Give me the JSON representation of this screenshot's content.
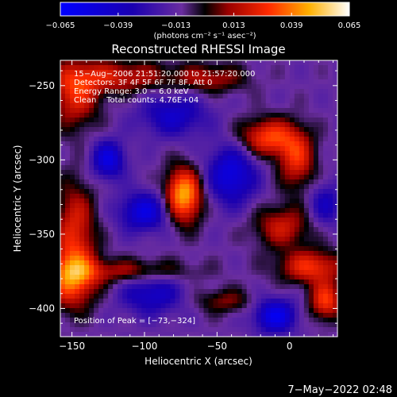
{
  "chart_data": {
    "type": "heatmap",
    "title": "Reconstructed RHESSI Image",
    "xlabel": "Heliocentric X (arcsec)",
    "ylabel": "Heliocentric Y (arcsec)",
    "xlim": [
      -158,
      33
    ],
    "ylim": [
      -419,
      -233
    ],
    "x_ticks": [
      -150,
      -100,
      -50,
      0
    ],
    "x_tick_labels": [
      "−150",
      "−100",
      "−50",
      "0"
    ],
    "y_ticks": [
      -250,
      -300,
      -350,
      -400
    ],
    "y_tick_labels": [
      "−250",
      "−300",
      "−350",
      "−400"
    ],
    "colorbar": {
      "min": -0.065,
      "max": 0.065,
      "ticks": [
        -0.065,
        -0.039,
        -0.013,
        0.013,
        0.039,
        0.065
      ],
      "tick_labels": [
        "−0.065",
        "−0.039",
        "−0.013",
        "0.013",
        "0.039",
        "0.065"
      ],
      "unit_label": "(photons cm⁻² s⁻¹ asec⁻²)"
    },
    "annotations": [
      "15−Aug−2006 21:51:20.000 to 21:57:20.000",
      "Detectors: 3F 4F 5F 6F 7F 8F, Att 0",
      "Energy Range: 3.0 − 6.0 keV",
      "Clean    Total counts: 4.76E+04"
    ],
    "peak_label": "Position of Peak = [−73,−324]",
    "peak": [
      -73,
      -324
    ],
    "sources": [
      {
        "x": -73,
        "y": -324,
        "sx": 9,
        "sy": 13,
        "amp": 0.06
      },
      {
        "x": -148,
        "y": -256,
        "sx": 12,
        "sy": 16,
        "amp": 0.035
      },
      {
        "x": -118,
        "y": -244,
        "sx": 25,
        "sy": 8,
        "amp": 0.03
      },
      {
        "x": -148,
        "y": -345,
        "sx": 10,
        "sy": 22,
        "amp": 0.033
      },
      {
        "x": -150,
        "y": -380,
        "sx": 12,
        "sy": 14,
        "amp": 0.045
      },
      {
        "x": -110,
        "y": -375,
        "sx": 30,
        "sy": 6,
        "amp": 0.025
      },
      {
        "x": -55,
        "y": -245,
        "sx": 18,
        "sy": 7,
        "amp": 0.025
      },
      {
        "x": -15,
        "y": -285,
        "sx": 14,
        "sy": 9,
        "amp": 0.042
      },
      {
        "x": 5,
        "y": -300,
        "sx": 9,
        "sy": 14,
        "amp": 0.035
      },
      {
        "x": -5,
        "y": -345,
        "sx": 14,
        "sy": 10,
        "amp": 0.03
      },
      {
        "x": 15,
        "y": -372,
        "sx": 16,
        "sy": 8,
        "amp": 0.038
      },
      {
        "x": 25,
        "y": -395,
        "sx": 8,
        "sy": 9,
        "amp": 0.04
      },
      {
        "x": -45,
        "y": -395,
        "sx": 14,
        "sy": 6,
        "amp": 0.02
      },
      {
        "x": -125,
        "y": -300,
        "sx": 8,
        "sy": 9,
        "amp": -0.04
      },
      {
        "x": -100,
        "y": -335,
        "sx": 12,
        "sy": 9,
        "amp": -0.04
      },
      {
        "x": -40,
        "y": -310,
        "sx": 12,
        "sy": 14,
        "amp": -0.04
      },
      {
        "x": -10,
        "y": -405,
        "sx": 10,
        "sy": 8,
        "amp": -0.045
      },
      {
        "x": -95,
        "y": -390,
        "sx": 15,
        "sy": 10,
        "amp": -0.03
      },
      {
        "x": -80,
        "y": -270,
        "sx": 16,
        "sy": 10,
        "amp": -0.03
      },
      {
        "x": 25,
        "y": -330,
        "sx": 8,
        "sy": 10,
        "amp": -0.025
      }
    ]
  },
  "footer": {
    "timestamp": "7−May−2022 02:48"
  }
}
